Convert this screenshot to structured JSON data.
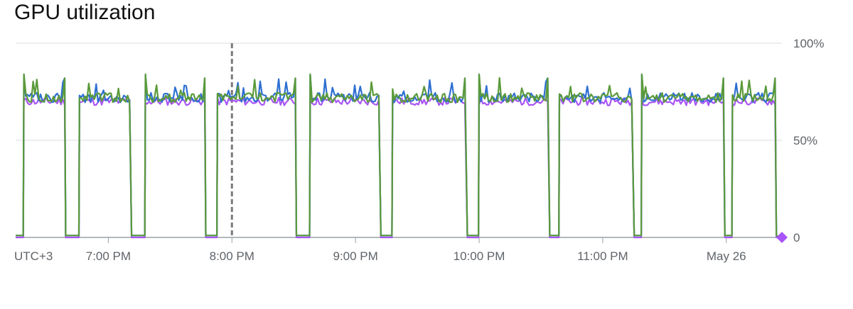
{
  "title": "GPU utilization",
  "colors": {
    "series_purple": "#a855f7",
    "series_blue": "#2e6fd1",
    "series_green": "#5a9a3a",
    "grid": "#dadce0",
    "axis": "#9aa0a6",
    "marker": "#a855f7",
    "text": "#5f6368"
  },
  "chart_data": {
    "type": "line",
    "title": "GPU utilization",
    "x_timezone_label": "UTC+3",
    "x_tick_labels": [
      "7:00 PM",
      "8:00 PM",
      "9:00 PM",
      "10:00 PM",
      "11:00 PM",
      "May 26"
    ],
    "y_tick_labels": [
      "100%",
      "50%",
      "0"
    ],
    "ylim": [
      0,
      100
    ],
    "grid": true,
    "cursor_line_at": "8:00 PM",
    "series": [
      {
        "color": "#a855f7",
        "line_style": "solid",
        "level_when_busy": 70,
        "level_when_idle": 0
      },
      {
        "color": "#2e6fd1",
        "line_style": "solid",
        "level_when_busy": 72,
        "level_when_idle": 1
      },
      {
        "color": "#5a9a3a",
        "line_style": "solid",
        "level_when_busy": 72,
        "level_when_idle": 1
      }
    ],
    "busy_periods": [
      [
        "18:19",
        "18:39"
      ],
      [
        "18:46",
        "19:11"
      ],
      [
        "19:18",
        "19:47"
      ],
      [
        "19:53",
        "20:31"
      ],
      [
        "20:38",
        "21:12"
      ],
      [
        "21:18",
        "21:54"
      ],
      [
        "22:00",
        "22:34"
      ],
      [
        "22:39",
        "23:15"
      ],
      [
        "23:19",
        "23:59"
      ],
      [
        "00:03",
        "00:24"
      ]
    ],
    "last_value": 0
  }
}
